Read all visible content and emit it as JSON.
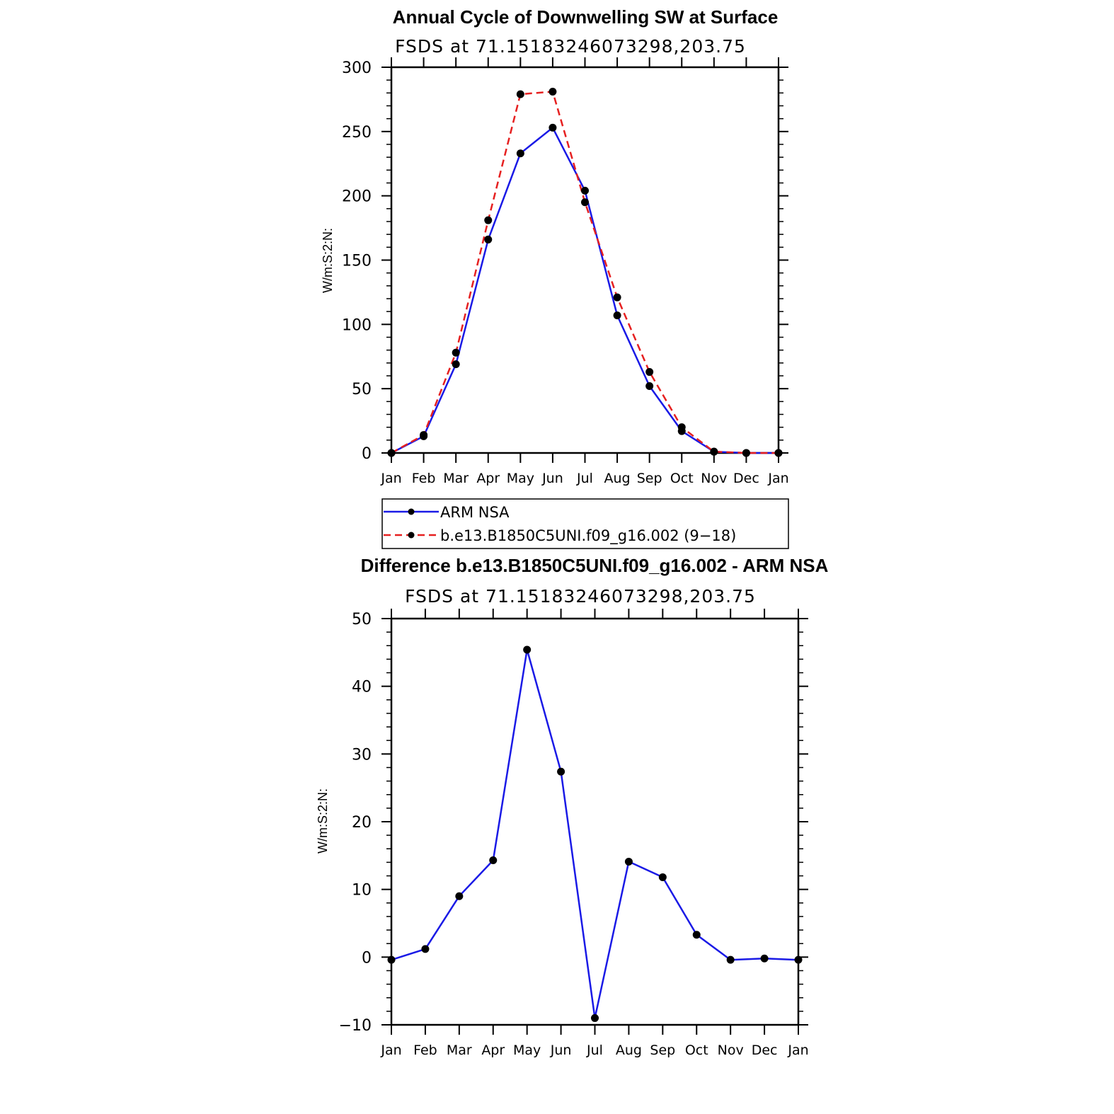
{
  "chart_data": [
    {
      "type": "line",
      "title": "Annual Cycle of Downwelling SW at Surface",
      "subtitle": "FSDS at 71.15183246073298,203.75",
      "ylabel": "W/m:S:2:N:",
      "xlabel": "",
      "categories": [
        "Jan",
        "Feb",
        "Mar",
        "Apr",
        "May",
        "Jun",
        "Jul",
        "Aug",
        "Sep",
        "Oct",
        "Nov",
        "Dec",
        "Jan"
      ],
      "yticks": [
        "0",
        "50",
        "100",
        "150",
        "200",
        "250",
        "300"
      ],
      "ylim": [
        0,
        300
      ],
      "legend": "bottom",
      "series": [
        {
          "name": "ARM NSA",
          "color": "#1a1ae6",
          "dash": "solid",
          "values": [
            0,
            13,
            69,
            166,
            233,
            253,
            204,
            107,
            52,
            17,
            1,
            0,
            0
          ]
        },
        {
          "name": "b.e13.B1850C5UNI.f09_g16.002 (9−18)",
          "color": "#e62020",
          "dash": "dashed",
          "values": [
            0,
            14,
            78,
            181,
            279,
            281,
            195,
            121,
            63,
            20,
            1,
            0,
            0
          ]
        }
      ]
    },
    {
      "type": "line",
      "title": "Difference b.e13.B1850C5UNI.f09_g16.002 - ARM NSA",
      "subtitle": "FSDS at 71.15183246073298,203.75",
      "ylabel": "W/m:S:2:N:",
      "xlabel": "",
      "categories": [
        "Jan",
        "Feb",
        "Mar",
        "Apr",
        "May",
        "Jun",
        "Jul",
        "Aug",
        "Sep",
        "Oct",
        "Nov",
        "Dec",
        "Jan"
      ],
      "yticks": [
        "−10",
        "0",
        "10",
        "20",
        "30",
        "40",
        "50"
      ],
      "ylim": [
        -10,
        50
      ],
      "series": [
        {
          "color": "#1a1ae6",
          "dash": "solid",
          "values": [
            -0.4,
            1.2,
            9.0,
            14.3,
            45.4,
            27.4,
            -9.0,
            14.1,
            11.8,
            3.3,
            -0.4,
            -0.2,
            -0.4
          ]
        }
      ]
    }
  ]
}
